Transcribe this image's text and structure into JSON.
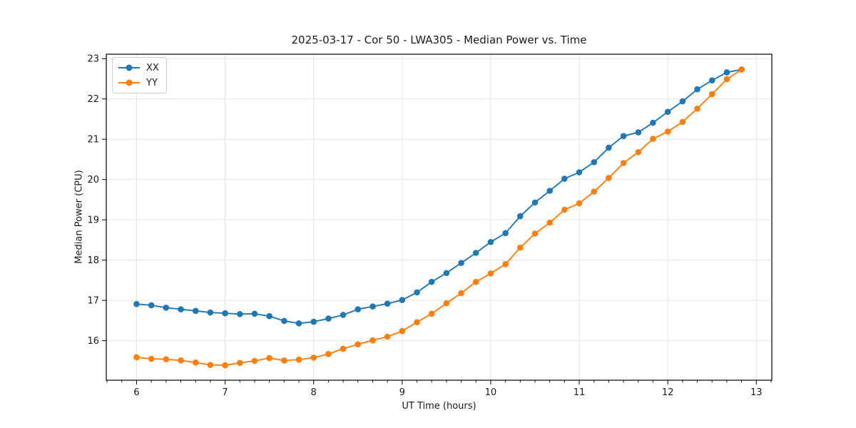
{
  "chart_data": {
    "type": "line",
    "title": "2025-03-17 - Cor 50 - LWA305 - Median Power vs. Time",
    "xlabel": "UT Time (hours)",
    "ylabel": "Median Power (CPU)",
    "xlim": [
      5.658,
      13.175
    ],
    "ylim": [
      15.02,
      23.11
    ],
    "xticks": [
      6,
      7,
      8,
      9,
      10,
      11,
      12,
      13
    ],
    "yticks": [
      16,
      17,
      18,
      19,
      20,
      21,
      22,
      23
    ],
    "x_minor_tick_step": 0.166667,
    "grid": true,
    "grid_color": "#e5e5e5",
    "spine_color": "#000000",
    "legend_position": "upper left",
    "x": [
      6.0,
      6.167,
      6.333,
      6.5,
      6.667,
      6.833,
      7.0,
      7.167,
      7.333,
      7.5,
      7.667,
      7.833,
      8.0,
      8.167,
      8.333,
      8.5,
      8.667,
      8.833,
      9.0,
      9.167,
      9.333,
      9.5,
      9.667,
      9.833,
      10.0,
      10.167,
      10.333,
      10.5,
      10.667,
      10.833,
      11.0,
      11.167,
      11.333,
      11.5,
      11.667,
      11.833,
      12.0,
      12.167,
      12.333,
      12.5,
      12.667,
      12.833
    ],
    "series": [
      {
        "name": "XX",
        "color": "#1f77b4",
        "values": [
          16.91,
          16.88,
          16.82,
          16.78,
          16.74,
          16.7,
          16.68,
          16.66,
          16.67,
          16.61,
          16.49,
          16.43,
          16.47,
          16.55,
          16.64,
          16.78,
          16.85,
          16.92,
          17.01,
          17.2,
          17.46,
          17.68,
          17.93,
          18.18,
          18.45,
          18.67,
          19.09,
          19.43,
          19.72,
          20.02,
          20.18,
          20.43,
          20.79,
          21.08,
          21.17,
          21.41,
          21.68,
          21.94,
          22.24,
          22.46,
          22.66,
          22.73
        ]
      },
      {
        "name": "YY",
        "color": "#ff7f0e",
        "values": [
          15.59,
          15.55,
          15.54,
          15.51,
          15.46,
          15.4,
          15.39,
          15.45,
          15.5,
          15.57,
          15.51,
          15.53,
          15.58,
          15.67,
          15.8,
          15.91,
          16.01,
          16.1,
          16.24,
          16.46,
          16.67,
          16.93,
          17.18,
          17.46,
          17.67,
          17.9,
          18.31,
          18.66,
          18.93,
          19.25,
          19.41,
          19.7,
          20.04,
          20.41,
          20.68,
          21.01,
          21.19,
          21.43,
          21.76,
          22.12,
          22.49,
          22.73
        ]
      }
    ]
  }
}
